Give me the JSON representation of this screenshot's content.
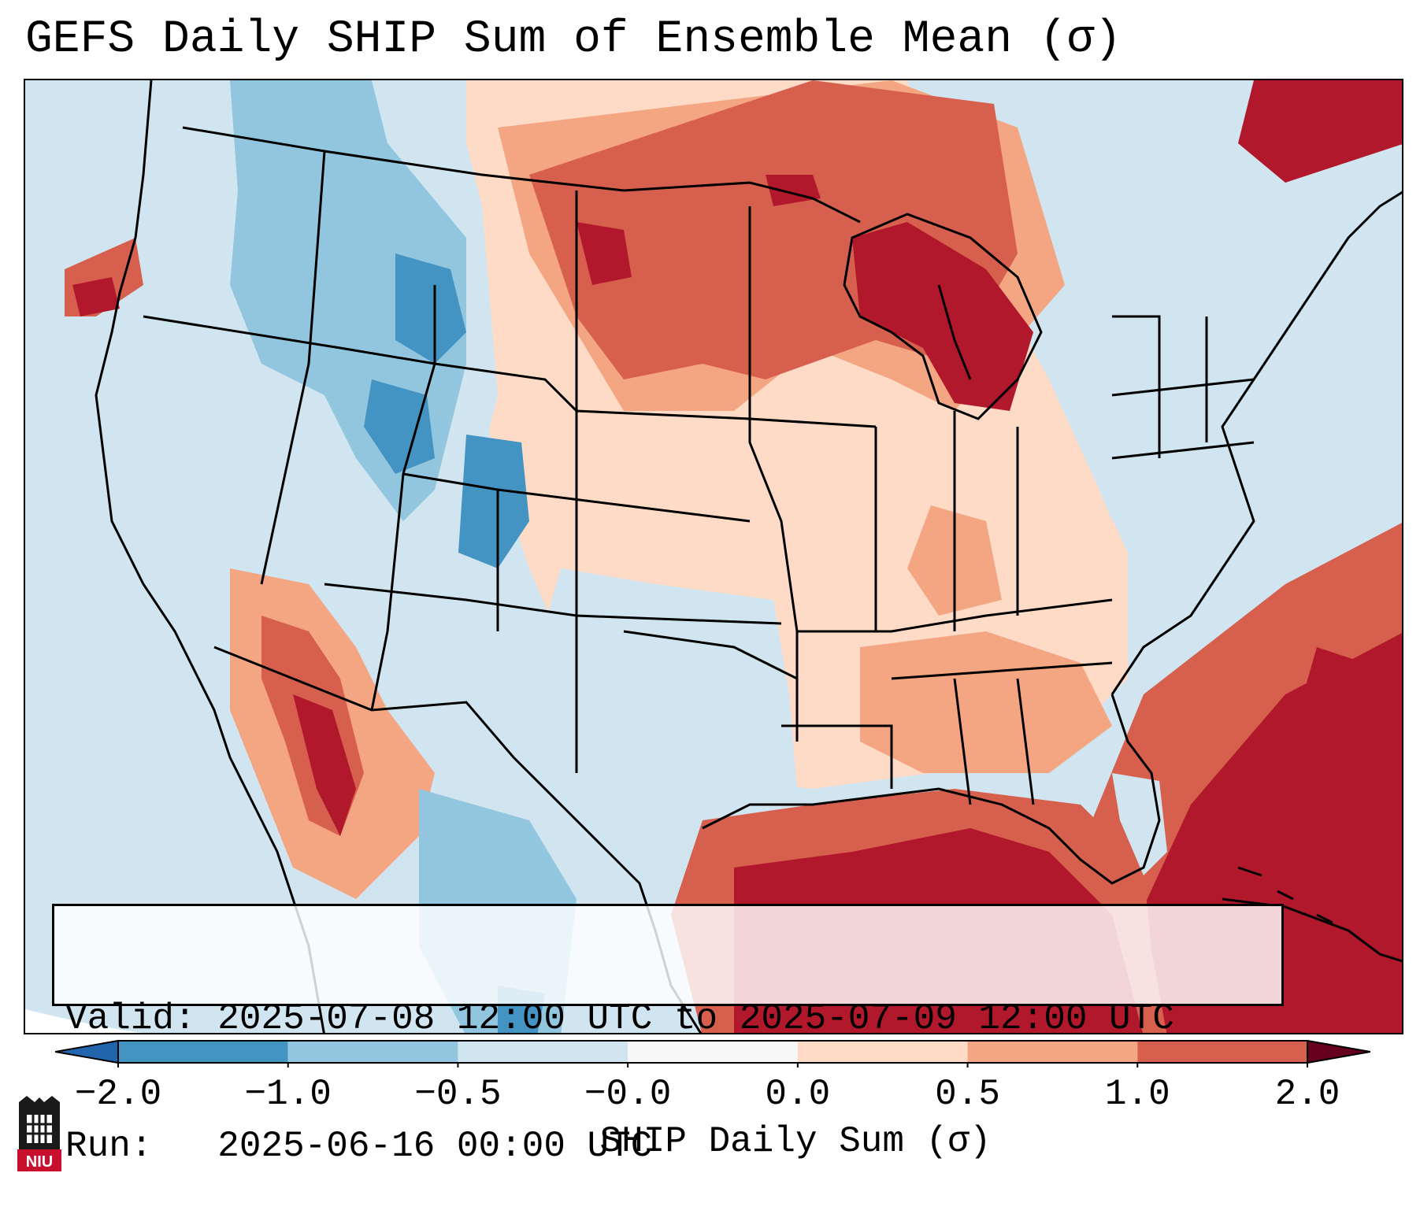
{
  "title": "GEFS Daily SHIP Sum of Ensemble Mean (σ)",
  "info": {
    "valid_label": "Valid:",
    "valid_value": "2025-07-08 12:00 UTC to 2025-07-09 12:00 UTC",
    "run_label": "Run:",
    "run_value": "2025-06-16 00:00 UTC"
  },
  "colorbar": {
    "label": "SHIP Daily Sum (σ)",
    "ticks": [
      "−2.0",
      "−1.0",
      "−0.5",
      "−0.0",
      "0.0",
      "0.5",
      "1.0",
      "2.0"
    ],
    "colors": [
      "#4393c3",
      "#92c5de",
      "#d1e5f0",
      "#f7f7f7",
      "#fddbc7",
      "#f4a582",
      "#d6604d",
      "#b2182b"
    ],
    "extend": "both"
  },
  "logo": {
    "text": "NIU",
    "icon": "niu-university-seal-icon"
  },
  "map": {
    "projection": "conus-lambert",
    "region": "Contiguous United States",
    "variable": "Significant Hail Parameter daily sum",
    "units": "σ",
    "ocean_color": "#d1e5f0",
    "outline_color": "#000000"
  }
}
